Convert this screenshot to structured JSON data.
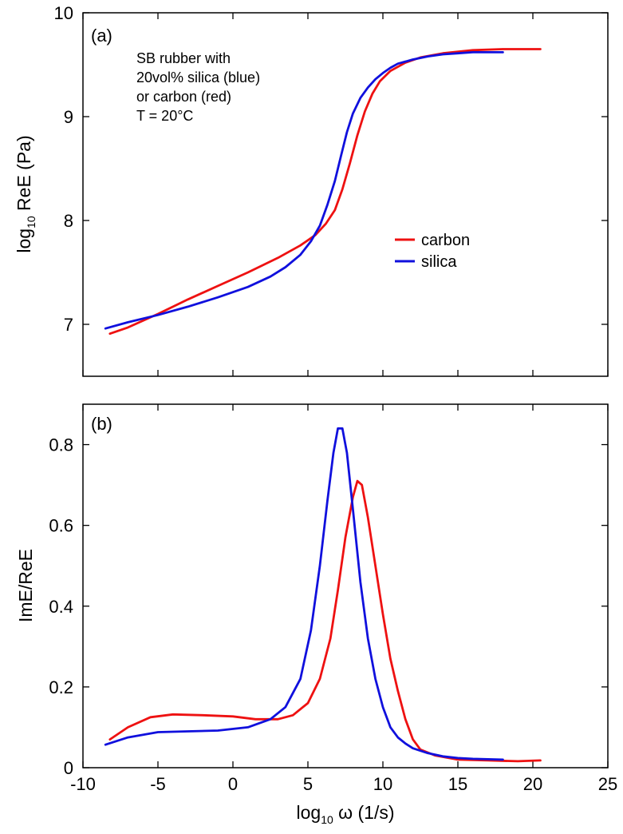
{
  "chart_data": [
    {
      "type": "line",
      "panel_label": "(a)",
      "xlabel": "",
      "ylabel": {
        "main": "log",
        "sub": "10",
        "rest": " ReE  (Pa)"
      },
      "xlim": [
        -10,
        25
      ],
      "ylim": [
        6.5,
        10
      ],
      "yticks": [
        7,
        8,
        9,
        10
      ],
      "ytick_labels": [
        "7",
        "8",
        "9",
        "10"
      ],
      "annotation_lines": [
        "SB rubber with",
        "20vol% silica (blue)",
        "or carbon (red)",
        "T = 20°C"
      ],
      "legend_position": "center-right",
      "series": [
        {
          "name": "carbon",
          "color": "#ee1111",
          "x": [
            -8.2,
            -7,
            -5,
            -3,
            -1,
            1,
            3,
            4.5,
            5.5,
            6.2,
            6.8,
            7.3,
            7.8,
            8.3,
            8.8,
            9.3,
            9.8,
            10.5,
            11.5,
            12.5,
            14,
            16,
            18,
            20.5
          ],
          "y": [
            6.91,
            6.97,
            7.1,
            7.24,
            7.37,
            7.5,
            7.64,
            7.76,
            7.86,
            7.97,
            8.1,
            8.3,
            8.55,
            8.82,
            9.05,
            9.22,
            9.34,
            9.44,
            9.52,
            9.57,
            9.61,
            9.64,
            9.65,
            9.65
          ]
        },
        {
          "name": "silica",
          "color": "#1010dd",
          "x": [
            -8.5,
            -7,
            -5,
            -3,
            -1,
            1,
            2.5,
            3.5,
            4.5,
            5.2,
            5.8,
            6.3,
            6.8,
            7.2,
            7.6,
            8,
            8.5,
            9,
            9.5,
            10,
            10.5,
            11,
            12,
            13,
            14,
            15,
            16,
            17,
            18
          ],
          "y": [
            6.96,
            7.02,
            7.09,
            7.17,
            7.26,
            7.36,
            7.46,
            7.55,
            7.67,
            7.8,
            7.95,
            8.15,
            8.38,
            8.62,
            8.85,
            9.03,
            9.18,
            9.28,
            9.36,
            9.42,
            9.47,
            9.51,
            9.55,
            9.58,
            9.6,
            9.61,
            9.62,
            9.62,
            9.62
          ]
        }
      ]
    },
    {
      "type": "line",
      "panel_label": "(b)",
      "xlabel": {
        "main": "log",
        "sub": "10",
        "rest": " ω  (1/s)"
      },
      "ylabel": {
        "main": "ImE/ReE",
        "sub": "",
        "rest": ""
      },
      "xlim": [
        -10,
        25
      ],
      "ylim": [
        0,
        0.9
      ],
      "xticks": [
        -10,
        -5,
        0,
        5,
        10,
        15,
        20,
        25
      ],
      "xtick_labels": [
        "-10",
        "-5",
        "0",
        "5",
        "10",
        "15",
        "20",
        "25"
      ],
      "yticks": [
        0,
        0.2,
        0.4,
        0.6,
        0.8
      ],
      "ytick_labels": [
        "0",
        "0.2",
        "0.4",
        "0.6",
        "0.8"
      ],
      "series": [
        {
          "name": "carbon",
          "color": "#ee1111",
          "x": [
            -8.2,
            -7,
            -5.5,
            -4,
            -2,
            0,
            1.5,
            3,
            4,
            5,
            5.8,
            6.5,
            7,
            7.5,
            8,
            8.3,
            8.6,
            9,
            9.5,
            10,
            10.5,
            11,
            11.5,
            12,
            12.5,
            13.5,
            15,
            17,
            19,
            20.5
          ],
          "y": [
            0.07,
            0.1,
            0.125,
            0.132,
            0.13,
            0.127,
            0.12,
            0.12,
            0.13,
            0.16,
            0.22,
            0.32,
            0.44,
            0.57,
            0.67,
            0.71,
            0.7,
            0.62,
            0.5,
            0.38,
            0.27,
            0.19,
            0.12,
            0.07,
            0.045,
            0.03,
            0.02,
            0.018,
            0.016,
            0.018
          ]
        },
        {
          "name": "silica",
          "color": "#1010dd",
          "x": [
            -8.5,
            -7,
            -5,
            -3,
            -1,
            1,
            2.5,
            3.5,
            4.5,
            5.2,
            5.8,
            6.3,
            6.7,
            7,
            7.3,
            7.6,
            8,
            8.5,
            9,
            9.5,
            10,
            10.5,
            11,
            11.5,
            12,
            13,
            14,
            15,
            16,
            17,
            18
          ],
          "y": [
            0.057,
            0.075,
            0.088,
            0.09,
            0.092,
            0.1,
            0.12,
            0.15,
            0.22,
            0.34,
            0.5,
            0.66,
            0.78,
            0.84,
            0.84,
            0.78,
            0.64,
            0.46,
            0.32,
            0.22,
            0.15,
            0.1,
            0.075,
            0.06,
            0.048,
            0.036,
            0.028,
            0.024,
            0.022,
            0.021,
            0.02
          ]
        }
      ]
    }
  ]
}
